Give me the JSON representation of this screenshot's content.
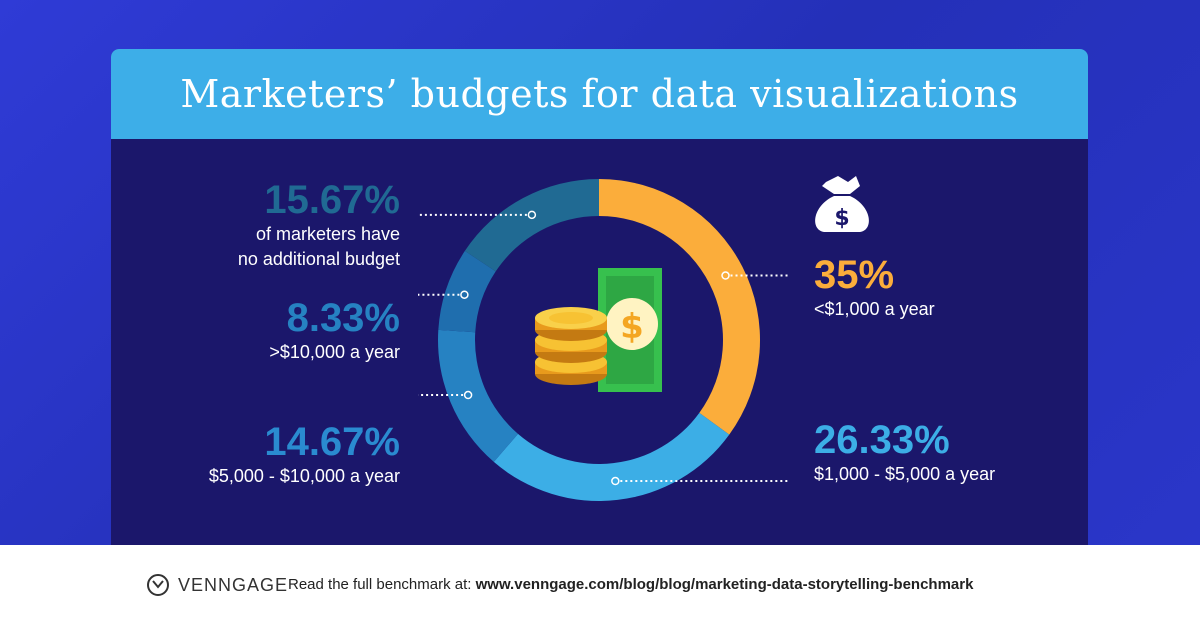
{
  "title": "Marketers’ budgets for data visualizations",
  "footer": {
    "brand": "VENNGAGE",
    "prefix": "Read the full benchmark at: ",
    "url": "www.venngage.com/blog/blog/marketing-data-storytelling-benchmark"
  },
  "labels": [
    {
      "pct": "15.67%",
      "line1": "of marketers have",
      "line2": "no additional budget"
    },
    {
      "pct": "8.33%",
      "line1": ">$10,000 a year"
    },
    {
      "pct": "14.67%",
      "line1": "$5,000 - $10,000 a year"
    },
    {
      "pct": "35%",
      "line1": "<$1,000 a year"
    },
    {
      "pct": "26.33%",
      "line1": "$1,000 - $5,000 a year"
    }
  ],
  "chart_data": {
    "type": "donut",
    "categories": [
      "<$1,000 a year",
      "$1,000 - $5,000 a year",
      "$5,000 - $10,000 a year",
      ">$10,000 a year",
      "no additional budget"
    ],
    "values": [
      35,
      26.33,
      14.67,
      8.33,
      15.67
    ],
    "colors": [
      "#fbad3b",
      "#3caee6",
      "#2682c2",
      "#1f6eae",
      "#206a93"
    ]
  },
  "icons": [
    "money-bag-icon",
    "coins-and-bill-icon",
    "venngage-logo-icon"
  ]
}
